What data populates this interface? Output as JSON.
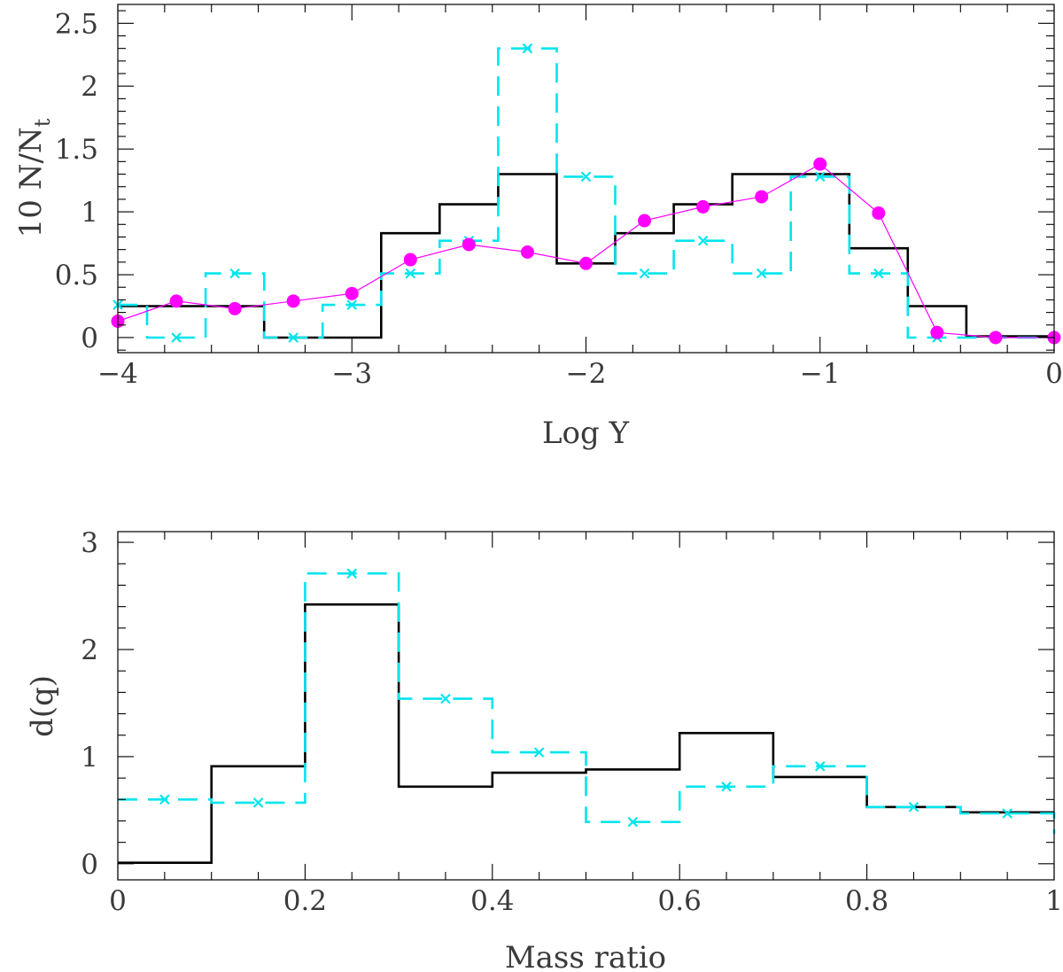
{
  "chart_data": [
    {
      "id": "top",
      "type": "step-histogram",
      "xlabel": "Log Y",
      "ylabel_main": "10 N/N",
      "ylabel_sub": "t",
      "xlim": [
        -4,
        0
      ],
      "ylim": [
        -0.12,
        2.65
      ],
      "xticks": [
        -4,
        -3,
        -2,
        -1,
        0
      ],
      "xtick_labels": [
        "−4",
        "−3",
        "−2",
        "−1",
        "0"
      ],
      "yticks": [
        0,
        0.5,
        1,
        1.5,
        2,
        2.5
      ],
      "ytick_labels": [
        "0",
        "0.5",
        "1",
        "1.5",
        "2",
        "2.5"
      ],
      "x_minor_step": 0.2,
      "y_minor_step": 0.1,
      "colors": {
        "black": "#000000",
        "cyan": "#00e5ee",
        "magenta": "#ff00ff"
      },
      "series": [
        {
          "name": "black histogram",
          "style": "solid",
          "edges": [
            -4,
            -3.375,
            -2.875,
            -2.625,
            -2.375,
            -2.125,
            -1.875,
            -1.625,
            -1.375,
            -0.875,
            -0.625,
            -0.375,
            0
          ],
          "values": [
            0.25,
            0,
            0.83,
            1.06,
            1.3,
            0.59,
            0.83,
            1.06,
            1.3,
            0.71,
            0.25,
            0.01
          ]
        },
        {
          "name": "cyan histogram",
          "style": "dashed",
          "edges": [
            -4,
            -3.875,
            -3.625,
            -3.375,
            -3.125,
            -2.875,
            -2.625,
            -2.375,
            -2.125,
            -1.875,
            -1.625,
            -1.375,
            -1.125,
            -0.875,
            -0.625,
            -0.375,
            -0.125,
            0
          ],
          "values": [
            0.26,
            0,
            0.51,
            0,
            0.26,
            0.51,
            0.77,
            2.3,
            1.28,
            0.51,
            0.77,
            0.51,
            1.28,
            0.51,
            0,
            0,
            0
          ],
          "markers_x": [
            -4,
            -3.75,
            -3.5,
            -3.25,
            -3,
            -2.75,
            -2.5,
            -2.25,
            -2,
            -1.75,
            -1.5,
            -1.25,
            -1,
            -0.75,
            -0.5,
            -0.25,
            0
          ],
          "markers_y": [
            0.26,
            0,
            0.51,
            0,
            0.26,
            0.51,
            0.77,
            2.3,
            1.28,
            0.51,
            0.77,
            0.51,
            1.28,
            0.51,
            0,
            0,
            0
          ]
        },
        {
          "name": "magenta points",
          "style": "line+circles",
          "x": [
            -4,
            -3.75,
            -3.5,
            -3.25,
            -3,
            -2.75,
            -2.5,
            -2.25,
            -2,
            -1.75,
            -1.5,
            -1.25,
            -1,
            -0.75,
            -0.5,
            -0.25,
            0
          ],
          "y": [
            0.13,
            0.29,
            0.23,
            0.29,
            0.35,
            0.62,
            0.74,
            0.68,
            0.59,
            0.93,
            1.04,
            1.12,
            1.38,
            0.99,
            0.04,
            0,
            0
          ]
        }
      ]
    },
    {
      "id": "bottom",
      "type": "step-histogram",
      "xlabel": "Mass ratio",
      "ylabel": "d(q)",
      "xlim": [
        0,
        1
      ],
      "ylim": [
        -0.15,
        3.1
      ],
      "xticks": [
        0,
        0.2,
        0.4,
        0.6,
        0.8,
        1
      ],
      "xtick_labels": [
        "0",
        "0.2",
        "0.4",
        "0.6",
        "0.8",
        "1"
      ],
      "yticks": [
        0,
        1,
        2,
        3
      ],
      "ytick_labels": [
        "0",
        "1",
        "2",
        "3"
      ],
      "x_minor_step": 0.05,
      "y_minor_step": 0.2,
      "series": [
        {
          "name": "black histogram",
          "style": "solid",
          "edges": [
            0,
            0.1,
            0.2,
            0.3,
            0.4,
            0.5,
            0.6,
            0.7,
            0.8,
            0.9,
            1
          ],
          "values": [
            0.01,
            0.91,
            2.42,
            0.72,
            0.85,
            0.88,
            1.22,
            0.81,
            0.53,
            0.48
          ]
        },
        {
          "name": "cyan histogram",
          "style": "dashed",
          "edges": [
            0,
            0.1,
            0.2,
            0.3,
            0.4,
            0.5,
            0.6,
            0.7,
            0.8,
            0.9,
            1
          ],
          "values": [
            0.6,
            0.57,
            2.71,
            1.54,
            1.04,
            0.39,
            0.72,
            0.91,
            0.53,
            0.47
          ],
          "end_drop_to": 0.28,
          "markers_x": [
            0.05,
            0.15,
            0.25,
            0.35,
            0.45,
            0.55,
            0.65,
            0.75,
            0.85,
            0.95
          ],
          "markers_y": [
            0.6,
            0.57,
            2.71,
            1.54,
            1.04,
            0.39,
            0.72,
            0.91,
            0.53,
            0.47
          ]
        }
      ]
    }
  ]
}
